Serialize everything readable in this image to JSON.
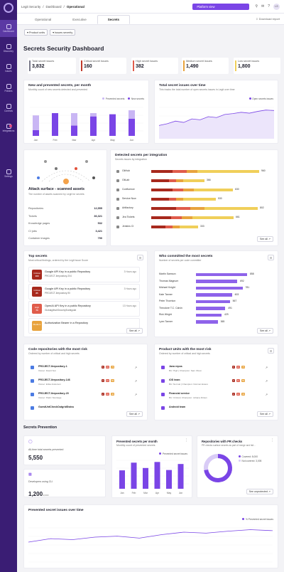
{
  "topbar": {
    "breadcrumb": [
      "Legit Security",
      "Dashboard",
      "Operational"
    ],
    "platform": "Platform view",
    "avatar": "LS"
  },
  "sidebar": {
    "items": [
      {
        "label": "Dashboard",
        "active": true
      },
      {
        "label": "Discovery"
      },
      {
        "label": "Issues"
      },
      {
        "label": "Policies"
      },
      {
        "label": "Controls"
      },
      {
        "label": "Integrations"
      },
      {
        "label": "Settings"
      }
    ]
  },
  "tabs": [
    "Operational",
    "Executive",
    "Secrets"
  ],
  "download": "Download report",
  "filters": [
    "Product units",
    "Issues severity"
  ],
  "page_title": "Secrets Security Dashboard",
  "stats": [
    {
      "label": "Total secret issues",
      "value": "3,832",
      "color": "#7a7a8a"
    },
    {
      "label": "Critical secret issues",
      "value": "160",
      "color": "#c0392b"
    },
    {
      "label": "High secret issues",
      "value": "382",
      "color": "#e05c4b"
    },
    {
      "label": "Medium secret issues",
      "value": "1,490",
      "color": "#e8a33d"
    },
    {
      "label": "Low secret issues",
      "value": "1,800",
      "color": "#f0cf5a"
    }
  ],
  "new_prevented": {
    "title": "New and prevented secrets, per month",
    "subtitle": "Monthly count of new secrets detected and prevented",
    "legend": [
      "Prevented secrets",
      "New secrets"
    ]
  },
  "total_over_time": {
    "title": "Total secret issues over time",
    "subtitle": "This tracks the total number of open secrets issues in Legit over time",
    "legend": "Open secrets issues"
  },
  "attack": {
    "title": "Attack surface - scanned assets",
    "subtitle": "The number of assets scanned by Legit for secrets",
    "rows": [
      {
        "label": "Repositories",
        "value": "12,555"
      },
      {
        "label": "Tickets",
        "value": "36,321"
      },
      {
        "label": "Knowledge pages",
        "value": "532"
      },
      {
        "label": "CI jobs",
        "value": "3,421"
      },
      {
        "label": "Container images",
        "value": "790"
      }
    ]
  },
  "integrations": {
    "title": "Detected secrets per integration",
    "subtitle": "Secrets issues by integration",
    "see_all": "See all",
    "rows": [
      {
        "label": "GitHub",
        "value": "960"
      },
      {
        "label": "GitLab",
        "value": "366"
      },
      {
        "label": "Confluence",
        "value": "630"
      },
      {
        "label": "Service Now",
        "value": "530"
      },
      {
        "label": "Artifactory",
        "value": "802"
      },
      {
        "label": "Jira Tickets",
        "value": "661"
      },
      {
        "label": "Jenkins CI",
        "value": "333"
      }
    ]
  },
  "top_secrets": {
    "title": "Top secrets",
    "subtitle": "Most critical findings, ordered by the Legit Issue Score",
    "see_all": "See all",
    "items": [
      {
        "sev": "Critical",
        "score": "100",
        "title": "Google API Key in a public Repository",
        "sub": "PROJECT-Ilrepository-204",
        "date": "3 Hours ago",
        "color": "#a7291d"
      },
      {
        "sev": "Critical",
        "score": "85",
        "title": "Google API Key in a public Repository",
        "sub": "PROJECT-Ilrepository-90",
        "date": "3 Hours ago",
        "color": "#a7291d"
      },
      {
        "sev": "High",
        "score": "70",
        "title": "OpenAI API Key in a public Repository",
        "sub": "GlobalgithubSecurity3/antigolat",
        "date": "13 Hours ago",
        "color": "#e05c4b"
      },
      {
        "sev": "Medium",
        "score": "",
        "title": "Authorization Bearer in a Repository",
        "sub": "",
        "date": "",
        "color": "#e8a33d"
      }
    ]
  },
  "committers": {
    "title": "Who committed the most secrets",
    "subtitle": "Number of secrets per code committer",
    "see_all": "See all",
    "rows": [
      {
        "label": "Martin Samson",
        "value": "858"
      },
      {
        "label": "Thomas Magnum",
        "value": "692"
      },
      {
        "label": "Michael Knight",
        "value": "781"
      },
      {
        "label": "Kate Tanner",
        "value": "603"
      },
      {
        "label": "Peter Thornton",
        "value": "567"
      },
      {
        "label": "Theodore T.C. Calvin",
        "value": "491"
      },
      {
        "label": "Rick Wright",
        "value": "429"
      },
      {
        "label": "Lynn Tanner",
        "value": "365"
      }
    ]
  },
  "repos": {
    "title": "Code repositories with the most risk",
    "subtitle": "Ordered by number of critical and high secrets",
    "see_all": "See all",
    "items": [
      {
        "name": "PROJECT-Ilrepository-1",
        "owner": "Owner: David Sun",
        "c": "5",
        "h": "15",
        "m": "75"
      },
      {
        "name": "PROJECT-Ilrepository-146",
        "owner": "Owner: Erika Anderson",
        "c": "3",
        "h": "12",
        "m": "50"
      },
      {
        "name": "PROJECT-Ilrepository-20",
        "owner": "Owner: Patric Stockage",
        "c": "2",
        "h": "10",
        "m": "40"
      },
      {
        "name": "GuestUntCheckOutgridSwiss",
        "owner": "",
        "c": "",
        "h": "",
        "m": ""
      }
    ]
  },
  "units": {
    "title": "Product Units with the most risk",
    "subtitle": "Ordered by number of critical and high secrets",
    "see_all": "See all",
    "items": [
      {
        "name": "Java repos",
        "owner": "BU: High | Champion: Sam Olson",
        "c": "5",
        "h": "15",
        "m": "75"
      },
      {
        "name": "iOS team",
        "owner": "BU: Normal | Champion: Norman Estero",
        "c": "3",
        "h": "12",
        "m": "50"
      },
      {
        "name": "Financial service",
        "owner": "BU: Critical | Champion: Johana Dinian",
        "c": "2",
        "h": "10",
        "m": "40"
      },
      {
        "name": "Android team",
        "owner": "",
        "c": "",
        "h": "",
        "m": ""
      }
    ]
  },
  "prevention": {
    "title": "Secrets Prevention",
    "all_time": {
      "label": "All-time total secrets prevented",
      "value": "5,550"
    },
    "devs": {
      "label": "Developers using CLI",
      "value": "1,200",
      "sub": "/3,000"
    },
    "per_month": {
      "title": "Prevented secrets per month",
      "subtitle": "Monthly count of prevented secrets",
      "legend": "Prevented secret issues",
      "months": [
        "Jan",
        "Feb",
        "Mar",
        "Apr",
        "May",
        "Jun"
      ]
    },
    "pr": {
      "title": "Repositories with PR checks",
      "subtitle": "PR checks surface secrets as part of merge and fail...",
      "covered": "Covered: 8,000",
      "uncovered": "Not covered: 3,005",
      "btn": "See unprotected"
    },
    "over_time": {
      "title": "Prevented secret issues over time",
      "legend": "% Prevented secret issues"
    }
  },
  "chart_data": [
    {
      "type": "bar",
      "title": "New and prevented secrets, per month",
      "categories": [
        "Jan",
        "Feb",
        "Mar",
        "Apr",
        "May",
        "Jun"
      ],
      "series": [
        {
          "name": "Prevented secrets",
          "values": [
            10,
            40,
            18,
            34,
            38,
            30
          ]
        },
        {
          "name": "New secrets",
          "values": [
            36,
            34,
            40,
            40,
            36,
            45
          ]
        }
      ],
      "color": "#7a45e6"
    },
    {
      "type": "area",
      "title": "Total secret issues over time",
      "series": [
        {
          "name": "Open secrets issues",
          "values": [
            30,
            34,
            40,
            37,
            45,
            43,
            50,
            48,
            55,
            57,
            60,
            58,
            62,
            65,
            64
          ]
        }
      ]
    },
    {
      "type": "bar",
      "title": "Prevented secrets per month",
      "categories": [
        "Jan",
        "Feb",
        "Mar",
        "Apr",
        "May",
        "Jun"
      ],
      "series": [
        {
          "name": "Prevented secret issues",
          "values": [
            55,
            78,
            62,
            80,
            56,
            74
          ]
        }
      ]
    },
    {
      "type": "pie",
      "title": "Repositories with PR checks",
      "slices": [
        {
          "name": "Covered",
          "value": 8000
        },
        {
          "name": "Not covered",
          "value": 3005
        }
      ]
    },
    {
      "type": "line",
      "title": "Prevented secret issues over time",
      "series": [
        {
          "name": "% Prevented secret issues",
          "values": [
            40,
            47,
            45,
            50,
            52,
            48,
            55,
            60,
            58,
            62,
            65,
            63
          ]
        }
      ]
    }
  ]
}
